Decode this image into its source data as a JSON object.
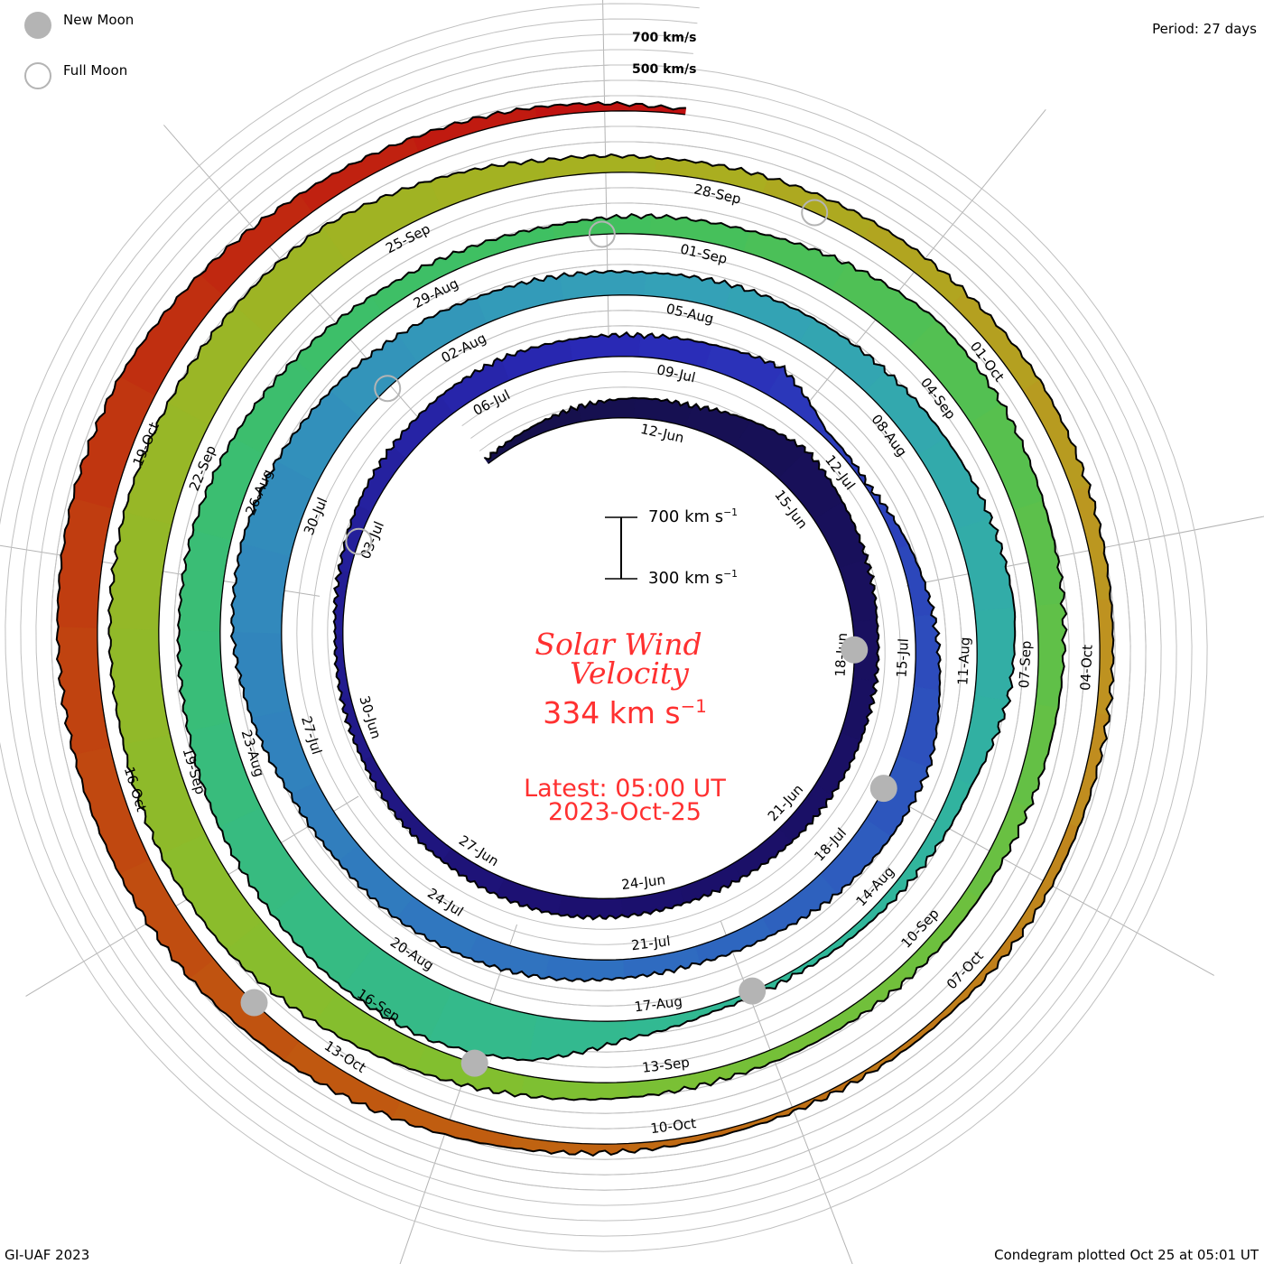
{
  "legend": {
    "new_moon": "New Moon",
    "full_moon": "Full Moon"
  },
  "period": "Period: 27 days",
  "speed_labels": {
    "high": "700 km/s",
    "mid": "500 km/s"
  },
  "scale_bar": {
    "top_value": "700 km s",
    "bottom_value": "300 km s",
    "exponent": "−1"
  },
  "title": {
    "line1": "Solar Wind",
    "line2": "Velocity"
  },
  "current": {
    "value": "334 km s",
    "exponent": "−1",
    "latest": "Latest: 05:00 UT",
    "date": "2023-Oct-25"
  },
  "footer": {
    "left": "GI-UAF 2023",
    "right": "Condegram plotted Oct 25 at 05:01 UT"
  },
  "colors": {
    "text_red": "#ff3030",
    "grid": "#b4b4b4",
    "moon": "#b4b4b4"
  },
  "chart_data": {
    "type": "area",
    "layout": "spiral condegram, clockwise, 27-day period",
    "title": "Solar Wind Velocity",
    "ylabel": "km/s",
    "ylim": [
      300,
      700
    ],
    "start_date": "2023-06-09",
    "reference_date": "2023-06-12",
    "period_days": 27,
    "date_labels": [
      "12-Jun",
      "15-Jun",
      "18-Jun",
      "21-Jun",
      "24-Jun",
      "27-Jun",
      "30-Jun",
      "03-Jul",
      "06-Jul",
      "09-Jul",
      "12-Jul",
      "15-Jul",
      "18-Jul",
      "21-Jul",
      "24-Jul",
      "27-Jul",
      "30-Jul",
      "02-Aug",
      "05-Aug",
      "08-Aug",
      "11-Aug",
      "14-Aug",
      "17-Aug",
      "20-Aug",
      "23-Aug",
      "26-Aug",
      "29-Aug",
      "01-Sep",
      "04-Sep",
      "07-Sep",
      "10-Sep",
      "13-Sep",
      "16-Sep",
      "19-Sep",
      "22-Sep",
      "25-Sep",
      "28-Sep",
      "01-Oct",
      "04-Oct",
      "07-Oct",
      "10-Oct",
      "13-Oct",
      "16-Oct",
      "19-Oct"
    ],
    "daily_velocity_kms": [
      330,
      360,
      400,
      430,
      440,
      500,
      560,
      520,
      490,
      460,
      450,
      440,
      430,
      420,
      410,
      410,
      420,
      430,
      420,
      400,
      390,
      370,
      360,
      350,
      370,
      400,
      420,
      440,
      450,
      440,
      440,
      460,
      500,
      340,
      320,
      380,
      430,
      470,
      520,
      500,
      470,
      430,
      410,
      420,
      450,
      470,
      480,
      470,
      490,
      560,
      620,
      630,
      600,
      560,
      520,
      480,
      460,
      450,
      470,
      480,
      490,
      510,
      540,
      560,
      520,
      420,
      380,
      350,
      330,
      340,
      420,
      600,
      660,
      650,
      620,
      600,
      580,
      570,
      560,
      520,
      470,
      430,
      400,
      390,
      420,
      440,
      500,
      560,
      540,
      500,
      480,
      450,
      420,
      400,
      390,
      380,
      380,
      400,
      430,
      480,
      540,
      600,
      620,
      610,
      620,
      620,
      600,
      590,
      580,
      500,
      420,
      400,
      410,
      420,
      420,
      430,
      410,
      390,
      380,
      370,
      360,
      340,
      330,
      330,
      350,
      380,
      420,
      460,
      500,
      520,
      540,
      560,
      570,
      560,
      500,
      440,
      400,
      370,
      334
    ],
    "new_moons": [
      "18-Jun",
      "17-Jul",
      "16-Aug",
      "15-Sep",
      "14-Oct"
    ],
    "full_moons": [
      "03-Jul",
      "01-Aug",
      "31-Aug",
      "29-Sep"
    ],
    "color_stops": [
      {
        "day": -3,
        "color": "#15104a"
      },
      {
        "day": 14,
        "color": "#1c1070"
      },
      {
        "day": 27,
        "color": "#2a2ab8"
      },
      {
        "day": 40,
        "color": "#2f6ec0"
      },
      {
        "day": 54,
        "color": "#34a0b8"
      },
      {
        "day": 65,
        "color": "#30b898"
      },
      {
        "day": 80,
        "color": "#40c060"
      },
      {
        "day": 95,
        "color": "#80c030"
      },
      {
        "day": 108,
        "color": "#a8b020"
      },
      {
        "day": 115,
        "color": "#c09020"
      },
      {
        "day": 122,
        "color": "#c06010"
      },
      {
        "day": 128,
        "color": "#c04010"
      },
      {
        "day": 135,
        "color": "#c01010"
      }
    ]
  }
}
